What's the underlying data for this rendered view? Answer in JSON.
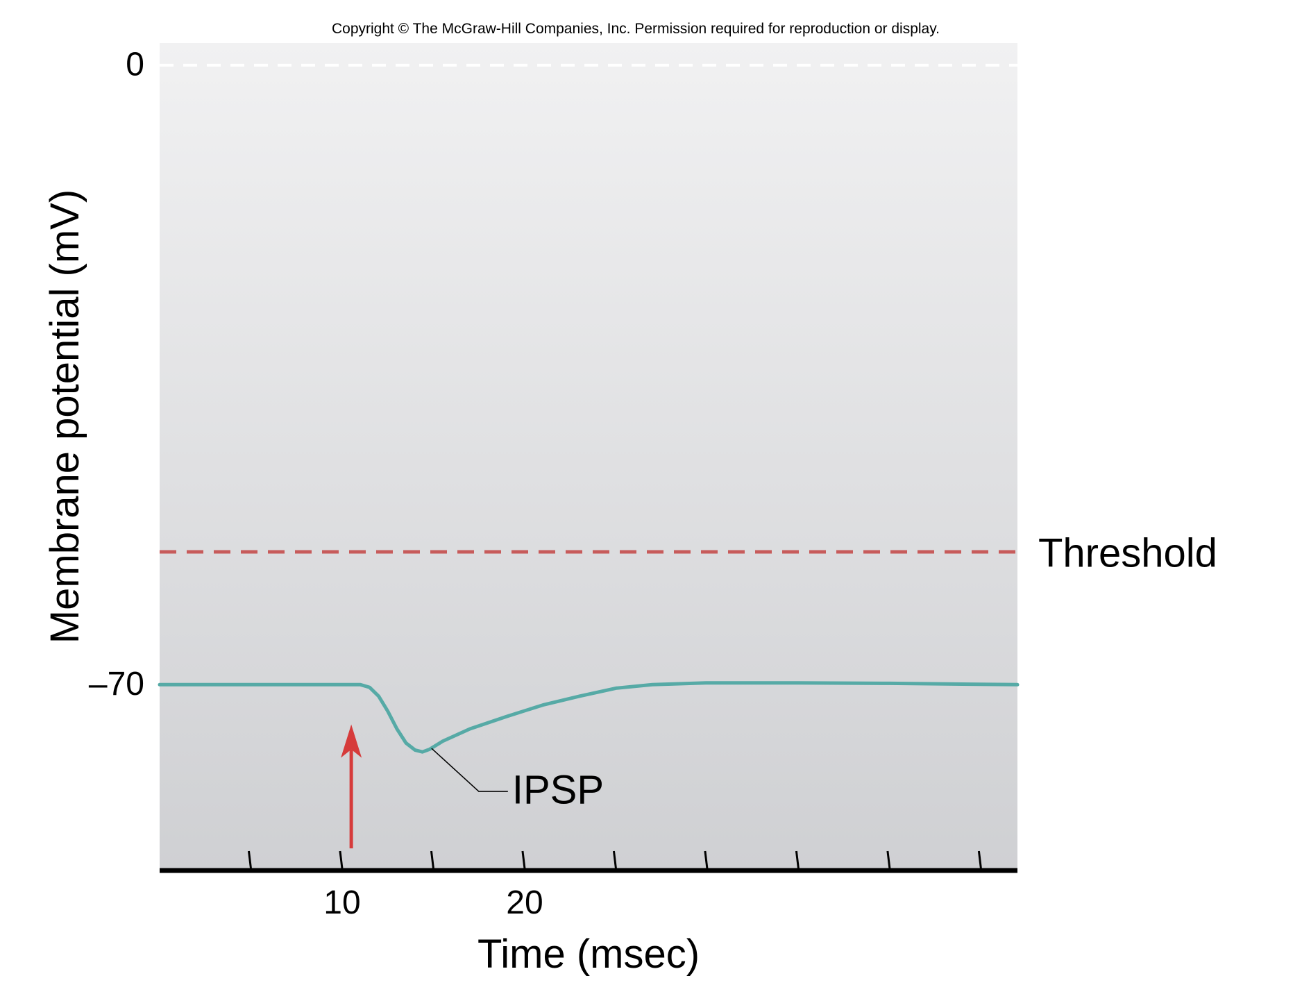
{
  "copyright": "Copyright © The McGraw-Hill Companies, Inc. Permission required for reproduction or display.",
  "chart_data": {
    "type": "line",
    "xlabel": "Time (msec)",
    "ylabel": "Membrane potential (mV)",
    "x_ticks": [
      5,
      10,
      15,
      20,
      25,
      30,
      35,
      40,
      45
    ],
    "x_tick_labels": [
      {
        "x": 10,
        "label": "10"
      },
      {
        "x": 20,
        "label": "20"
      }
    ],
    "y_ticks": [
      {
        "y": 0,
        "label": "0"
      },
      {
        "y": -70,
        "label": "–70"
      }
    ],
    "xlim": [
      0,
      47
    ],
    "ylim": [
      -91,
      2.5
    ],
    "threshold": {
      "y": -55,
      "label": "Threshold",
      "color": "#c75b5b"
    },
    "zero_line": {
      "y": 0,
      "color": "#ffffff"
    },
    "series": [
      {
        "color": "#56aaa6",
        "points": [
          [
            0,
            -70
          ],
          [
            11,
            -70
          ],
          [
            11.5,
            -70.3
          ],
          [
            12,
            -71.3
          ],
          [
            12.5,
            -73.0
          ],
          [
            13,
            -75.0
          ],
          [
            13.5,
            -76.6
          ],
          [
            14,
            -77.4
          ],
          [
            14.4,
            -77.6
          ],
          [
            14.8,
            -77.3
          ],
          [
            15.5,
            -76.4
          ],
          [
            17,
            -75.0
          ],
          [
            19,
            -73.6
          ],
          [
            21,
            -72.3
          ],
          [
            23,
            -71.3
          ],
          [
            25,
            -70.4
          ],
          [
            27,
            -70.0
          ],
          [
            30,
            -69.8
          ],
          [
            35,
            -69.8
          ],
          [
            40,
            -69.85
          ],
          [
            47,
            -70.0
          ]
        ]
      }
    ],
    "annotations": [
      {
        "text": "IPSP",
        "target": [
          14.9,
          -77.2
        ]
      },
      {
        "type": "arrow",
        "x": 10.5,
        "y_from": -88.5,
        "y_to": -74.5,
        "color": "#d63b3b"
      }
    ],
    "background": {
      "gradient_top": "#f1f1f2",
      "gradient_bottom": "#cfd0d3"
    },
    "grid": false
  }
}
